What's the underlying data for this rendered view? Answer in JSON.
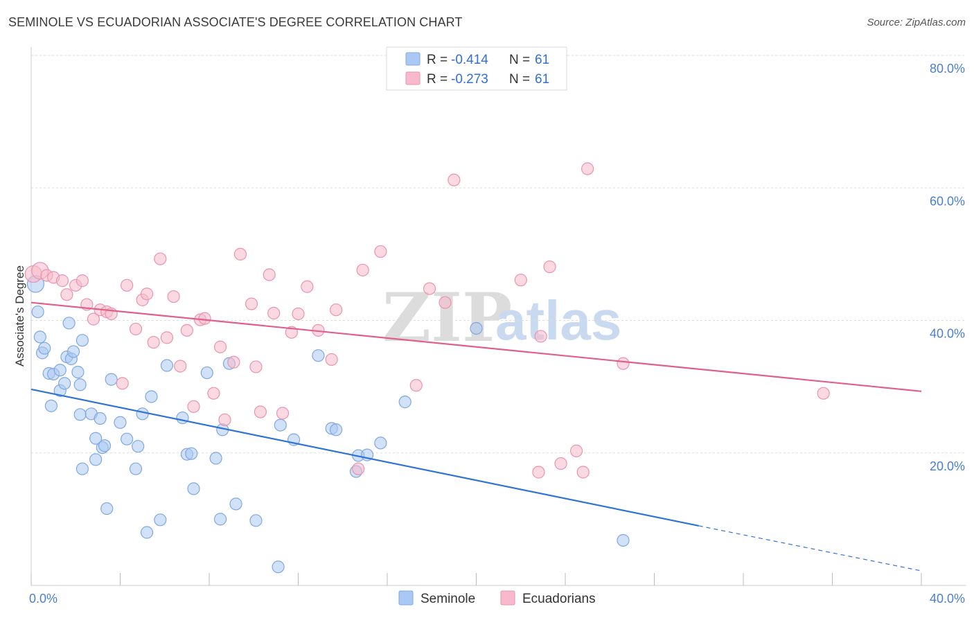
{
  "header": {
    "title": "SEMINOLE VS ECUADORIAN ASSOCIATE'S DEGREE CORRELATION CHART",
    "source": "Source: ZipAtlas.com"
  },
  "watermark": {
    "zip": "ZIP",
    "atlas": "atlas"
  },
  "legend": {
    "rows": [
      {
        "r_label": "R = ",
        "r_value": "-0.414",
        "n_label": "N = ",
        "n_value": "61",
        "color": "#a9c8f3"
      },
      {
        "r_label": "R = ",
        "r_value": "-0.273",
        "n_label": "N = ",
        "n_value": "61",
        "color": "#f7b9cb"
      }
    ]
  },
  "bottom_legend": [
    "Seminole",
    "Ecuadorians"
  ],
  "chart_data": {
    "type": "scatter",
    "title": "SEMINOLE VS ECUADORIAN ASSOCIATE'S DEGREE CORRELATION CHART",
    "xlabel": "",
    "ylabel": "Associate's Degree",
    "xlim": [
      0,
      40
    ],
    "ylim": [
      0,
      80
    ],
    "x_tick_labels": [
      "0.0%",
      "40.0%"
    ],
    "y_ticks": [
      20,
      40,
      60,
      80
    ],
    "y_tick_labels": [
      "20.0%",
      "40.0%",
      "60.0%",
      "80.0%"
    ],
    "grid": true,
    "legend_position": "top-center",
    "series": [
      {
        "name": "Seminole",
        "color": "#a9c8f3",
        "line_color": "#2f73d6",
        "trend": {
          "x0": 0,
          "y0": 29.6,
          "x1": 30,
          "y1": 9.0,
          "dashed_to_x": 40,
          "dashed_to_y": 2.2
        },
        "points": [
          [
            0.2,
            45.5
          ],
          [
            0.3,
            41.3
          ],
          [
            0.4,
            37.5
          ],
          [
            0.5,
            35.1
          ],
          [
            0.6,
            35.8
          ],
          [
            0.8,
            32.0
          ],
          [
            1.0,
            31.9
          ],
          [
            0.9,
            27.1
          ],
          [
            1.3,
            32.5
          ],
          [
            1.3,
            29.4
          ],
          [
            1.5,
            30.5
          ],
          [
            1.6,
            34.5
          ],
          [
            1.7,
            39.6
          ],
          [
            1.8,
            34.2
          ],
          [
            1.9,
            35.3
          ],
          [
            2.1,
            32.2
          ],
          [
            2.2,
            30.3
          ],
          [
            2.3,
            37.0
          ],
          [
            2.3,
            17.6
          ],
          [
            2.2,
            25.8
          ],
          [
            2.7,
            25.9
          ],
          [
            2.9,
            22.2
          ],
          [
            2.9,
            19.0
          ],
          [
            3.1,
            25.2
          ],
          [
            3.2,
            20.8
          ],
          [
            3.4,
            11.6
          ],
          [
            3.6,
            31.1
          ],
          [
            4.0,
            24.6
          ],
          [
            4.3,
            22.1
          ],
          [
            4.7,
            17.6
          ],
          [
            4.8,
            21.0
          ],
          [
            5.0,
            25.9
          ],
          [
            5.2,
            8.0
          ],
          [
            5.4,
            28.5
          ],
          [
            5.8,
            9.9
          ],
          [
            6.1,
            33.2
          ],
          [
            6.8,
            25.3
          ],
          [
            7.0,
            19.8
          ],
          [
            7.2,
            19.9
          ],
          [
            7.3,
            14.6
          ],
          [
            7.9,
            32.1
          ],
          [
            8.3,
            19.2
          ],
          [
            8.5,
            10.0
          ],
          [
            8.6,
            23.5
          ],
          [
            8.9,
            33.5
          ],
          [
            9.2,
            12.3
          ],
          [
            10.1,
            9.8
          ],
          [
            11.1,
            2.8
          ],
          [
            11.2,
            24.2
          ],
          [
            11.8,
            22.0
          ],
          [
            12.9,
            34.7
          ],
          [
            13.5,
            23.7
          ],
          [
            13.7,
            23.5
          ],
          [
            14.6,
            17.2
          ],
          [
            14.7,
            19.6
          ],
          [
            15.1,
            19.7
          ],
          [
            15.7,
            21.5
          ],
          [
            16.8,
            27.7
          ],
          [
            20.0,
            38.8
          ],
          [
            26.6,
            6.8
          ],
          [
            3.3,
            21.1
          ]
        ]
      },
      {
        "name": "Ecuadorians",
        "color": "#f7b9cb",
        "line_color": "#e0608a",
        "trend": {
          "x0": 0,
          "y0": 42.7,
          "x1": 40,
          "y1": 29.3
        },
        "points": [
          [
            0.1,
            47.0
          ],
          [
            0.4,
            47.5
          ],
          [
            0.7,
            46.8
          ],
          [
            1.0,
            46.5
          ],
          [
            1.4,
            46.0
          ],
          [
            1.6,
            43.9
          ],
          [
            2.0,
            45.3
          ],
          [
            2.3,
            46.0
          ],
          [
            2.5,
            42.4
          ],
          [
            2.8,
            40.2
          ],
          [
            3.1,
            41.6
          ],
          [
            3.4,
            41.3
          ],
          [
            3.6,
            41.0
          ],
          [
            4.1,
            30.5
          ],
          [
            4.3,
            45.3
          ],
          [
            4.7,
            38.7
          ],
          [
            5.0,
            43.1
          ],
          [
            5.2,
            44.0
          ],
          [
            5.5,
            36.7
          ],
          [
            5.8,
            49.3
          ],
          [
            6.1,
            37.4
          ],
          [
            6.4,
            43.6
          ],
          [
            6.7,
            33.1
          ],
          [
            7.0,
            38.5
          ],
          [
            7.3,
            27.0
          ],
          [
            7.6,
            40.1
          ],
          [
            7.8,
            40.3
          ],
          [
            8.2,
            29.0
          ],
          [
            8.5,
            36.0
          ],
          [
            8.7,
            25.0
          ],
          [
            9.1,
            33.7
          ],
          [
            9.4,
            50.0
          ],
          [
            9.9,
            42.5
          ],
          [
            10.1,
            33.0
          ],
          [
            10.3,
            26.2
          ],
          [
            10.7,
            46.9
          ],
          [
            10.9,
            41.1
          ],
          [
            11.3,
            26.0
          ],
          [
            11.7,
            38.2
          ],
          [
            12.0,
            41.0
          ],
          [
            12.4,
            45.1
          ],
          [
            12.9,
            38.5
          ],
          [
            13.5,
            34.1
          ],
          [
            13.7,
            41.6
          ],
          [
            14.7,
            17.6
          ],
          [
            14.9,
            47.6
          ],
          [
            15.7,
            50.4
          ],
          [
            17.3,
            30.2
          ],
          [
            17.9,
            44.8
          ],
          [
            18.6,
            42.7
          ],
          [
            19.0,
            61.2
          ],
          [
            22.0,
            46.1
          ],
          [
            22.8,
            17.1
          ],
          [
            22.9,
            37.6
          ],
          [
            23.3,
            48.1
          ],
          [
            23.8,
            18.4
          ],
          [
            24.5,
            20.3
          ],
          [
            24.8,
            17.1
          ],
          [
            25.0,
            62.9
          ],
          [
            26.6,
            33.5
          ],
          [
            35.6,
            29.0
          ]
        ]
      }
    ]
  }
}
